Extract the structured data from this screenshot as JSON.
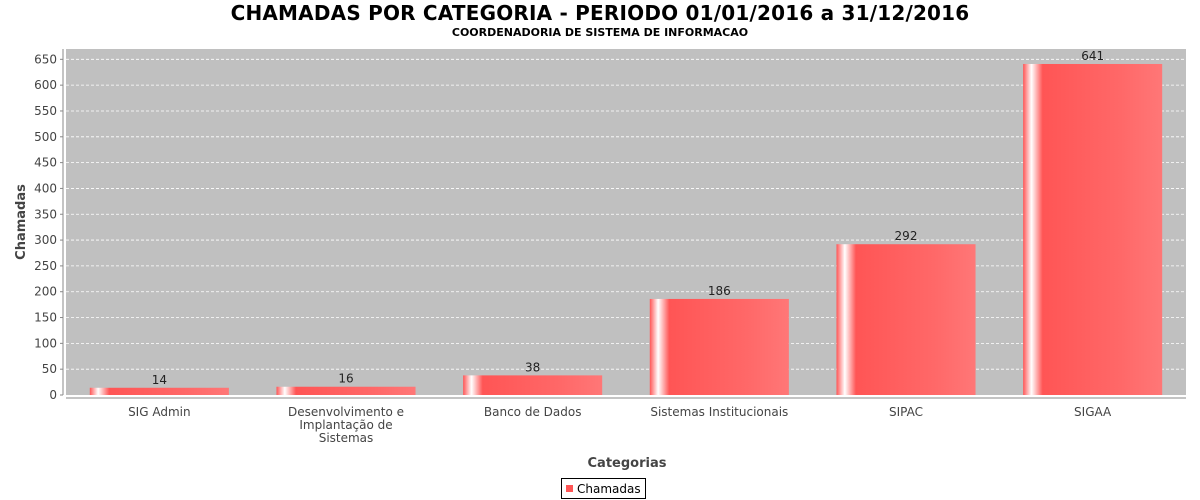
{
  "chart_data": {
    "type": "bar",
    "title": "CHAMADAS POR CATEGORIA - PERIODO 01/01/2016 a 31/12/2016",
    "subtitle": "COORDENADORIA DE SISTEMA DE INFORMACAO",
    "xlabel": "Categorias",
    "ylabel": "Chamadas",
    "categories": [
      [
        "SIG Admin"
      ],
      [
        "Desenvolvimento e",
        "Implantação de",
        "Sistemas"
      ],
      [
        "Banco de Dados"
      ],
      [
        "Sistemas Institucionais"
      ],
      [
        "SIPAC"
      ],
      [
        "SIGAA"
      ]
    ],
    "series": [
      {
        "name": "Chamadas",
        "values": [
          14,
          16,
          38,
          186,
          292,
          641
        ]
      }
    ],
    "ylim": [
      0,
      670
    ],
    "yticks": [
      0,
      50,
      100,
      150,
      200,
      250,
      300,
      350,
      400,
      450,
      500,
      550,
      600,
      650
    ],
    "grid": true,
    "legend_position": "bottom",
    "colors": {
      "bar": "#ff5555",
      "plot_background": "#c0c0c0",
      "gridline": "#ffffff"
    }
  }
}
